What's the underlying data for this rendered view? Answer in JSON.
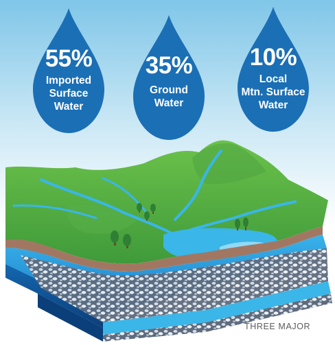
{
  "drops": [
    {
      "percent": "55%",
      "lines": [
        "Imported",
        "Surface",
        "Water"
      ]
    },
    {
      "percent": "35%",
      "lines": [
        "Ground",
        "Water"
      ]
    },
    {
      "percent": "10%",
      "lines": [
        "Local",
        "Mtn. Surface",
        "Water"
      ]
    }
  ],
  "caption": "THREE MAJOR",
  "colors": {
    "drop": "#1b6fb5",
    "sky_top": "#7fc6e8",
    "grass": "#5cb848",
    "river": "#3ab6e8",
    "aquifer": "#1f8ed6",
    "caption": "#5b5b5b"
  },
  "icons": [
    "water-drop-icon",
    "tree-icon"
  ]
}
